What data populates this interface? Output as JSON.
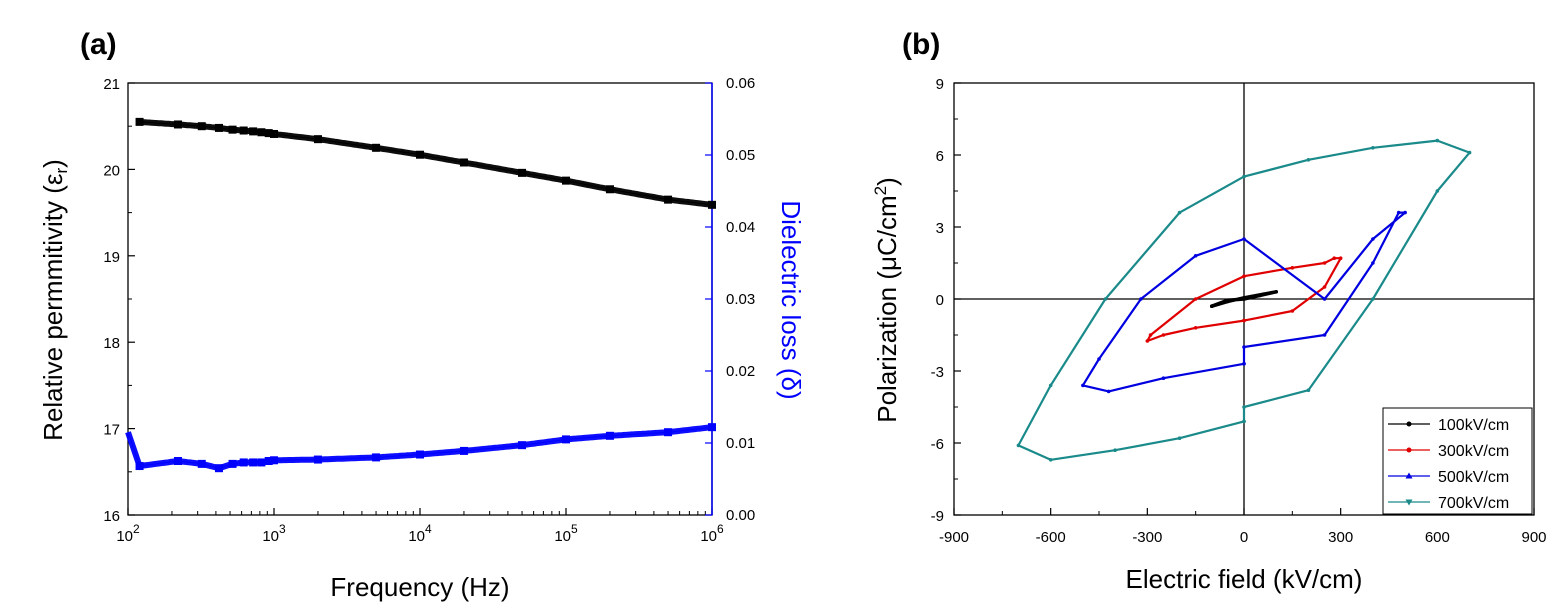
{
  "chart_data": [
    {
      "panel_label": "(a)",
      "type": "scatter",
      "xlabel": "Frequency (Hz)",
      "x_scale": "log",
      "xlim": [
        100,
        1000000
      ],
      "x_ticks": [
        {
          "value": 100,
          "base": "10",
          "exp": "2"
        },
        {
          "value": 1000,
          "base": "10",
          "exp": "3"
        },
        {
          "value": 10000,
          "base": "10",
          "exp": "4"
        },
        {
          "value": 100000,
          "base": "10",
          "exp": "5"
        },
        {
          "value": 1000000,
          "base": "10",
          "exp": "6"
        }
      ],
      "ylabel_left": {
        "main": "Relative permmitivity (ε",
        "sub": "r",
        "end": ")"
      },
      "ylim_left": [
        16,
        21
      ],
      "y_ticks_left": [
        "16",
        "17",
        "18",
        "19",
        "20",
        "21"
      ],
      "ylabel_right": "Dielectric loss (δ)",
      "ylim_right": [
        0,
        0.06
      ],
      "y_ticks_right": [
        "0.00",
        "0.01",
        "0.02",
        "0.03",
        "0.04",
        "0.05",
        "0.06"
      ],
      "colors": {
        "permittivity": "#000000",
        "loss": "#0000ff"
      },
      "series": [
        {
          "axis": "left",
          "color": "#000000",
          "marker": "square",
          "x": [
            120,
            220,
            320,
            420,
            520,
            620,
            720,
            820,
            920,
            1000,
            2000,
            5000,
            10000,
            20000,
            50000,
            100000,
            200000,
            500000,
            1000000
          ],
          "y": [
            20.55,
            20.52,
            20.5,
            20.48,
            20.46,
            20.45,
            20.44,
            20.43,
            20.42,
            20.41,
            20.35,
            20.25,
            20.17,
            20.08,
            19.96,
            19.87,
            19.77,
            19.65,
            19.59
          ]
        },
        {
          "axis": "right",
          "color": "#0000ff",
          "marker": "square",
          "x": [
            100,
            120,
            220,
            320,
            420,
            520,
            620,
            720,
            820,
            920,
            1000,
            2000,
            5000,
            10000,
            20000,
            50000,
            100000,
            200000,
            500000,
            1000000
          ],
          "y": [
            0.0115,
            0.0068,
            0.0075,
            0.0071,
            0.0065,
            0.0071,
            0.0073,
            0.0073,
            0.0073,
            0.0075,
            0.0076,
            0.0077,
            0.008,
            0.0084,
            0.0089,
            0.0097,
            0.0105,
            0.011,
            0.0115,
            0.0122
          ]
        }
      ]
    },
    {
      "panel_label": "(b)",
      "type": "line",
      "xlabel": "Electric field (kV/cm)",
      "ylabel": {
        "main": "Polarization (μC/cm",
        "sup": "2",
        "end": ")"
      },
      "xlim": [
        -900,
        900
      ],
      "ylim": [
        -9,
        9
      ],
      "x_ticks": [
        "-900",
        "-600",
        "-300",
        "0",
        "300",
        "600",
        "900"
      ],
      "y_ticks": [
        "-9",
        "-6",
        "-3",
        "0",
        "3",
        "6",
        "9"
      ],
      "series": [
        {
          "name": "100kV/cm",
          "color": "#000000",
          "marker": "circle",
          "x": [
            -100,
            -50,
            0,
            50,
            100,
            60,
            0,
            -50,
            -100
          ],
          "y": [
            -0.3,
            -0.05,
            0.0,
            0.15,
            0.3,
            0.2,
            0.05,
            -0.1,
            -0.3
          ]
        },
        {
          "name": "300kV/cm",
          "color": "#e00000",
          "marker": "circle",
          "x": [
            0,
            150,
            250,
            300,
            280,
            250,
            150,
            0,
            -150,
            -290,
            -300,
            -250,
            -150,
            0
          ],
          "y": [
            -0.9,
            -0.5,
            0.5,
            1.7,
            1.7,
            1.5,
            1.3,
            0.95,
            0.0,
            -1.5,
            -1.75,
            -1.5,
            -1.2,
            -0.9
          ]
        },
        {
          "name": "500kV/cm",
          "color": "#0000e0",
          "marker": "triangle-up",
          "x": [
            0,
            0,
            250,
            400,
            480,
            500,
            400,
            250,
            0,
            -150,
            -320,
            -450,
            -500,
            -420,
            -250,
            0
          ],
          "y": [
            -2.7,
            -2.0,
            -1.5,
            1.5,
            3.6,
            3.6,
            2.5,
            0.0,
            2.5,
            1.8,
            0.0,
            -2.5,
            -3.6,
            -3.85,
            -3.3,
            -2.7
          ]
        },
        {
          "name": "700kV/cm",
          "color": "#1a8a8a",
          "marker": "triangle-down",
          "x": [
            0,
            0,
            200,
            400,
            600,
            700,
            600,
            400,
            200,
            0,
            -200,
            -430,
            -600,
            -700,
            -600,
            -400,
            -200,
            0
          ],
          "y": [
            -5.1,
            -4.5,
            -3.8,
            0.0,
            4.5,
            6.1,
            6.6,
            6.3,
            5.8,
            5.1,
            3.6,
            0.0,
            -3.6,
            -6.1,
            -6.7,
            -6.3,
            -5.8,
            -5.1
          ]
        }
      ],
      "legend_position": "bottom-right"
    }
  ]
}
